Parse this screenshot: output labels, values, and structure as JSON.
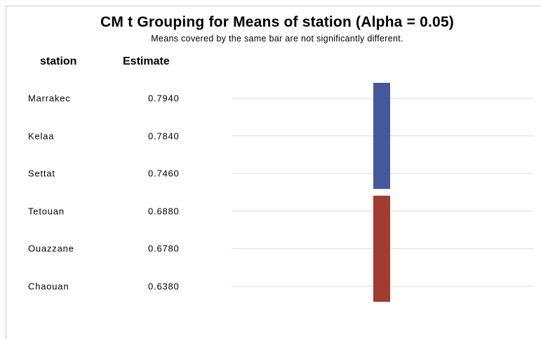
{
  "chart_data": {
    "type": "table",
    "title": "CM t Grouping for Means of station (Alpha = 0.05)",
    "subtitle": "Means covered by the same bar are not significantly different.",
    "columns": [
      "station",
      "Estimate"
    ],
    "rows": [
      {
        "station": "Marrakec",
        "estimate": "0.7940",
        "group": 1
      },
      {
        "station": "Kelaa",
        "estimate": "0.7840",
        "group": 1
      },
      {
        "station": "Settat",
        "estimate": "0.7460",
        "group": 1
      },
      {
        "station": "Tetouan",
        "estimate": "0.6880",
        "group": 2
      },
      {
        "station": "Ouazzane",
        "estimate": "0.6780",
        "group": 2
      },
      {
        "station": "Chaouan",
        "estimate": "0.6380",
        "group": 2
      }
    ],
    "groups": [
      {
        "id": 1,
        "first_row": 0,
        "last_row": 2,
        "color": "#46589a"
      },
      {
        "id": 2,
        "first_row": 3,
        "last_row": 5,
        "color": "#a23b30"
      }
    ],
    "gridline_color": "#d9d9d9"
  }
}
